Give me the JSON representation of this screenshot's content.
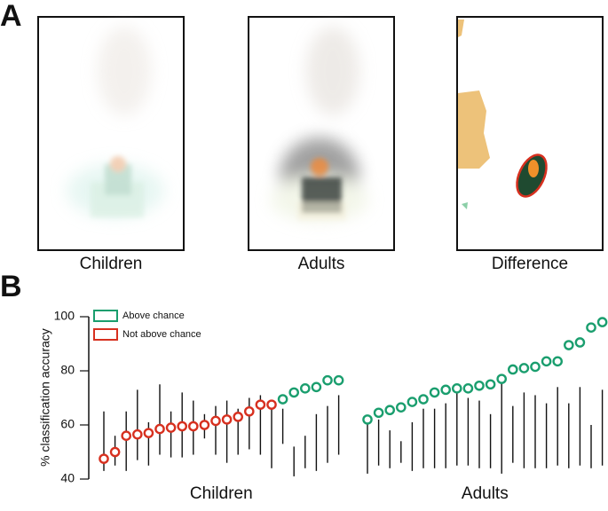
{
  "panel_labels": [
    "A",
    "B"
  ],
  "image_labels": [
    "Children",
    "Adults",
    "Difference"
  ],
  "chart_data": {
    "type": "scatter",
    "ylabel": "% classification accuracy",
    "ylim": [
      40,
      100
    ],
    "yticks": [
      40,
      60,
      80,
      100
    ],
    "series": [
      {
        "name": "Above chance",
        "color": "#1a9e6e"
      },
      {
        "name": "Not above chance",
        "color": "#d7301f"
      }
    ],
    "groups": [
      {
        "name": "Children",
        "values": [
          47.5,
          50,
          56,
          56.5,
          57,
          58.5,
          59,
          59.5,
          59.5,
          60,
          61.5,
          62,
          63,
          65,
          67.5,
          67.5,
          69.5,
          72,
          73.5,
          74,
          76.5,
          76.5
        ],
        "intervals": [
          [
            43,
            65
          ],
          [
            45,
            56
          ],
          [
            43,
            65
          ],
          [
            47,
            73
          ],
          [
            45,
            61
          ],
          [
            49,
            75
          ],
          [
            48,
            65
          ],
          [
            48,
            72
          ],
          [
            49,
            69
          ],
          [
            55,
            64
          ],
          [
            49,
            67
          ],
          [
            46,
            69
          ],
          [
            49,
            66
          ],
          [
            51,
            70
          ],
          [
            49,
            71
          ],
          [
            44,
            69
          ],
          [
            53,
            66
          ],
          [
            41,
            52
          ],
          [
            44,
            56
          ],
          [
            43,
            64
          ],
          [
            46,
            67
          ],
          [
            49,
            71
          ]
        ],
        "series": [
          1,
          1,
          1,
          1,
          1,
          1,
          1,
          1,
          1,
          1,
          1,
          1,
          1,
          1,
          1,
          1,
          0,
          0,
          0,
          0,
          0,
          0
        ]
      },
      {
        "name": "Adults",
        "values": [
          62,
          64.5,
          65.5,
          66.5,
          68.5,
          69.5,
          72,
          73,
          73.5,
          73.5,
          74.5,
          75,
          77,
          80.5,
          81,
          81.5,
          83.5,
          83.5,
          89.5,
          90.5,
          96,
          98
        ],
        "intervals": [
          [
            42,
            61
          ],
          [
            45,
            62
          ],
          [
            44,
            58
          ],
          [
            46,
            54
          ],
          [
            43,
            61
          ],
          [
            44,
            66
          ],
          [
            44,
            66
          ],
          [
            44,
            68
          ],
          [
            45,
            73
          ],
          [
            45,
            70
          ],
          [
            44,
            69
          ],
          [
            44,
            64
          ],
          [
            42,
            78
          ],
          [
            46,
            67
          ],
          [
            44,
            72
          ],
          [
            44,
            71
          ],
          [
            44,
            68
          ],
          [
            45,
            74
          ],
          [
            44,
            68
          ],
          [
            45,
            74
          ],
          [
            44,
            60
          ],
          [
            45,
            73
          ]
        ],
        "series": [
          0,
          0,
          0,
          0,
          0,
          0,
          0,
          0,
          0,
          0,
          0,
          0,
          0,
          0,
          0,
          0,
          0,
          0,
          0,
          0,
          0,
          0
        ]
      }
    ]
  }
}
